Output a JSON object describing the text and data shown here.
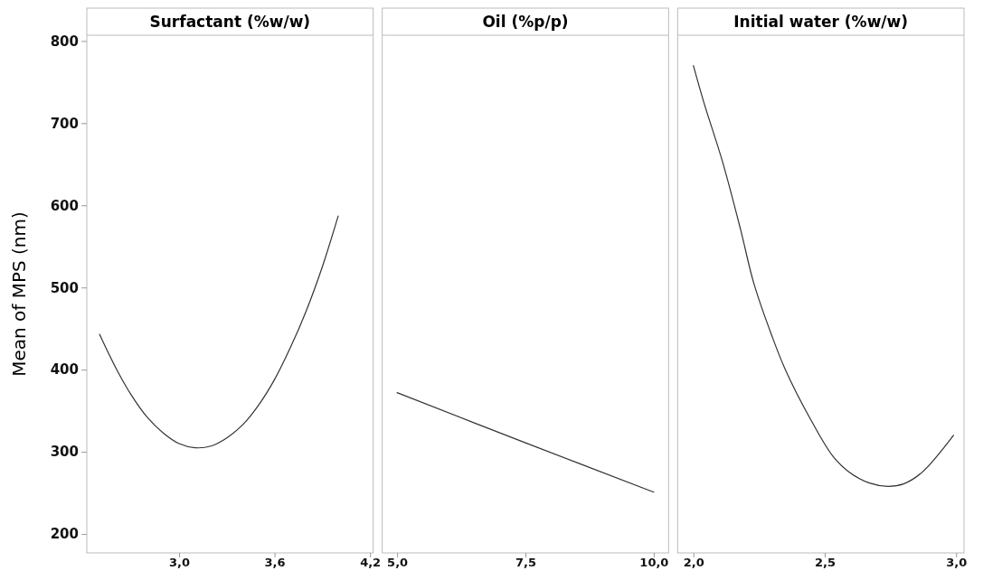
{
  "chart_data": [
    {
      "type": "line",
      "title": "Surfactant (%w/w)",
      "ylabel": "Mean of MPS (nm)",
      "xlim": [
        2.42,
        4.22
      ],
      "ylim": [
        177,
        807
      ],
      "xticks": [
        {
          "value": 3.0,
          "label": "3,0"
        },
        {
          "value": 3.6,
          "label": "3,6"
        },
        {
          "value": 4.2,
          "label": "4,2"
        }
      ],
      "yticks": [
        200,
        300,
        400,
        500,
        600,
        700,
        800
      ],
      "grid": false,
      "marker": "none",
      "line_style": "solid",
      "series": [
        {
          "color": "#333333",
          "x": [
            2.5,
            2.6,
            2.7,
            2.8,
            2.9,
            3.0,
            3.1,
            3.2,
            3.3,
            3.4,
            3.5,
            3.6,
            3.7,
            3.8,
            3.9,
            4.0
          ],
          "values": [
            443,
            403,
            369,
            342,
            323,
            310,
            305,
            307,
            317,
            333,
            357,
            388,
            427,
            472,
            525,
            587
          ]
        }
      ]
    },
    {
      "type": "line",
      "title": "Oil (%p/p)",
      "xlim": [
        4.71,
        10.29
      ],
      "ylim": [
        177,
        807
      ],
      "tick_labels": "x",
      "xticks": [
        {
          "value": 5.0,
          "label": "5,0"
        },
        {
          "value": 7.5,
          "label": "7,5"
        },
        {
          "value": 10.0,
          "label": "10,0"
        }
      ],
      "grid": false,
      "marker": "none",
      "line_style": "solid",
      "series": [
        {
          "color": "#333333",
          "x": [
            5.0,
            7.5,
            10.0
          ],
          "values": [
            372,
            311,
            251
          ]
        }
      ]
    },
    {
      "type": "line",
      "title": "Initial water (%w/w)",
      "xlim": [
        1.94,
        3.03
      ],
      "ylim": [
        177,
        807
      ],
      "tick_labels": "x",
      "xticks": [
        {
          "value": 2.0,
          "label": "2,0"
        },
        {
          "value": 2.5,
          "label": "2,5"
        },
        {
          "value": 3.0,
          "label": "3,0"
        }
      ],
      "grid": false,
      "marker": "none",
      "line_style": "solid",
      "series": [
        {
          "color": "#333333",
          "x": [
            2.0,
            2.04,
            2.11,
            2.18,
            2.23,
            2.3,
            2.35,
            2.44,
            2.53,
            2.59,
            2.67,
            2.74,
            2.8,
            2.87,
            2.99
          ],
          "values": [
            770,
            725,
            654,
            570,
            505,
            440,
            400,
            343,
            295,
            276,
            262,
            258,
            261,
            275,
            320
          ]
        }
      ]
    }
  ]
}
